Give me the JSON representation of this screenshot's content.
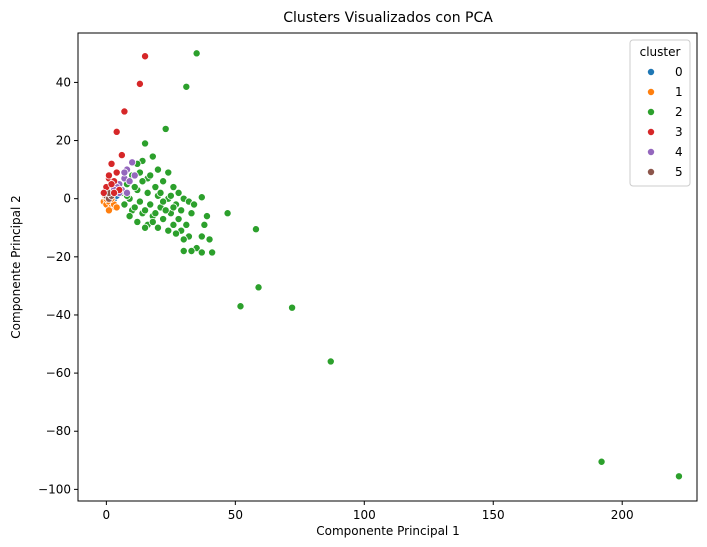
{
  "chart_data": {
    "type": "scatter",
    "title": "Clusters Visualizados con PCA",
    "xlabel": "Componente Principal 1",
    "ylabel": "Componente Principal 2",
    "xlim": [
      -11,
      229
    ],
    "ylim": [
      -104,
      57
    ],
    "xticks": [
      0,
      50,
      100,
      150,
      200
    ],
    "yticks": [
      -100,
      -80,
      -60,
      -40,
      -20,
      0,
      20,
      40
    ],
    "grid": false,
    "legend": {
      "title": "cluster",
      "placement": "top-right",
      "entries": [
        "0",
        "1",
        "2",
        "3",
        "4",
        "5"
      ]
    },
    "series": [
      {
        "name": "0",
        "color": "#1f77b4",
        "points": [
          [
            1,
            1
          ],
          [
            2,
            -1
          ],
          [
            3,
            0
          ],
          [
            2,
            2
          ],
          [
            4,
            1
          ],
          [
            1,
            -2
          ]
        ]
      },
      {
        "name": "1",
        "color": "#ff7f0e",
        "points": [
          [
            -1,
            -1
          ],
          [
            0,
            -2
          ],
          [
            1,
            -1
          ],
          [
            2,
            -3
          ],
          [
            3,
            -2
          ],
          [
            0,
            0
          ],
          [
            4,
            -3
          ],
          [
            1,
            -4
          ],
          [
            2,
            0
          ],
          [
            -0.5,
            1
          ]
        ]
      },
      {
        "name": "2",
        "color": "#2ca02c",
        "points": [
          [
            35,
            50
          ],
          [
            31,
            38.5
          ],
          [
            23,
            24
          ],
          [
            15,
            19
          ],
          [
            18,
            14.5
          ],
          [
            14,
            13
          ],
          [
            20,
            10
          ],
          [
            24,
            9
          ],
          [
            12,
            12
          ],
          [
            10,
            8
          ],
          [
            16,
            7
          ],
          [
            22,
            6
          ],
          [
            26,
            4
          ],
          [
            28,
            2
          ],
          [
            30,
            0
          ],
          [
            32,
            -1
          ],
          [
            34,
            -2
          ],
          [
            8,
            5
          ],
          [
            12,
            3
          ],
          [
            16,
            2
          ],
          [
            20,
            1
          ],
          [
            24,
            0
          ],
          [
            27,
            -2
          ],
          [
            29,
            -4
          ],
          [
            33,
            -5
          ],
          [
            6,
            2
          ],
          [
            9,
            0
          ],
          [
            13,
            -1
          ],
          [
            17,
            -2
          ],
          [
            21,
            -3
          ],
          [
            25,
            -5
          ],
          [
            28,
            -7
          ],
          [
            31,
            -9
          ],
          [
            7,
            -2
          ],
          [
            10,
            -4
          ],
          [
            14,
            -5
          ],
          [
            18,
            -6
          ],
          [
            22,
            -7
          ],
          [
            26,
            -9
          ],
          [
            29,
            -11
          ],
          [
            32,
            -13
          ],
          [
            9,
            -6
          ],
          [
            12,
            -8
          ],
          [
            16,
            -9
          ],
          [
            20,
            -10
          ],
          [
            24,
            -11
          ],
          [
            27,
            -12
          ],
          [
            30,
            -14
          ],
          [
            11,
            -3
          ],
          [
            15,
            -4
          ],
          [
            19,
            -5
          ],
          [
            23,
            -4
          ],
          [
            26,
            -3
          ],
          [
            8,
            1
          ],
          [
            11,
            4
          ],
          [
            14,
            6
          ],
          [
            17,
            8
          ],
          [
            19,
            4
          ],
          [
            21,
            2
          ],
          [
            13,
            9
          ],
          [
            15,
            -10
          ],
          [
            18,
            -8
          ],
          [
            22,
            -1
          ],
          [
            25,
            1
          ],
          [
            37,
            0.5
          ],
          [
            39,
            -6
          ],
          [
            38,
            -9
          ],
          [
            37,
            -13
          ],
          [
            35,
            -17
          ],
          [
            40,
            -14
          ],
          [
            41,
            -18.5
          ],
          [
            37,
            -18.5
          ],
          [
            33,
            -18
          ],
          [
            30,
            -18
          ],
          [
            47,
            -5
          ],
          [
            58,
            -10.5
          ],
          [
            52,
            -37
          ],
          [
            59,
            -30.5
          ],
          [
            72,
            -37.5
          ],
          [
            87,
            -56
          ],
          [
            192,
            -90.5
          ],
          [
            222,
            -95.5
          ]
        ]
      },
      {
        "name": "3",
        "color": "#d62728",
        "points": [
          [
            15,
            49
          ],
          [
            13,
            39.5
          ],
          [
            7,
            30
          ],
          [
            4,
            23
          ],
          [
            6,
            15
          ],
          [
            2,
            12
          ],
          [
            4,
            9
          ],
          [
            1,
            7
          ],
          [
            3,
            6
          ],
          [
            0,
            4
          ],
          [
            2,
            5
          ],
          [
            5,
            3
          ],
          [
            -1,
            2
          ],
          [
            3,
            2
          ],
          [
            1,
            8
          ]
        ]
      },
      {
        "name": "4",
        "color": "#9467bd",
        "points": [
          [
            10,
            12.5
          ],
          [
            8,
            10
          ],
          [
            7,
            7
          ],
          [
            5,
            5
          ],
          [
            9,
            6
          ],
          [
            6,
            3
          ],
          [
            4,
            4
          ],
          [
            8,
            2
          ],
          [
            3,
            3
          ],
          [
            7,
            9
          ],
          [
            11,
            8
          ],
          [
            5,
            2
          ]
        ]
      },
      {
        "name": "5",
        "color": "#8c564b",
        "points": [
          [
            0,
            1
          ],
          [
            1,
            0
          ],
          [
            2,
            1
          ],
          [
            0,
            3
          ],
          [
            1,
            2
          ]
        ]
      }
    ]
  }
}
